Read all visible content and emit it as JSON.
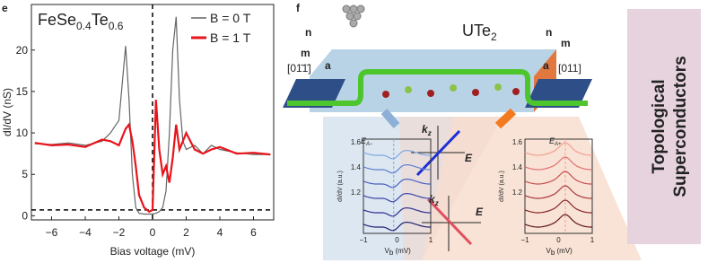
{
  "chart_data": {
    "type": "line",
    "label": "e",
    "title_parts": [
      "FeSe",
      "0.4",
      "Te",
      "0.6"
    ],
    "xlabel": "Bias voltage (mV)",
    "ylabel": "dI/dV (nS)",
    "x": [
      -7,
      -6,
      -5,
      -4,
      -3,
      -2.5,
      -2,
      -1.6,
      -1.4,
      -1.2,
      -1,
      -0.8,
      -0.5,
      -0.2,
      0,
      0.2,
      0.4,
      0.6,
      0.8,
      1,
      1.2,
      1.4,
      1.6,
      1.8,
      2,
      2.5,
      3,
      3.5,
      4,
      5,
      6,
      7
    ],
    "series": [
      {
        "name": "B = 0 T",
        "color": "#666666",
        "values": [
          8.7,
          8.6,
          8.8,
          8.5,
          9.0,
          10,
          11.5,
          20.5,
          14,
          5,
          1,
          0.3,
          0.2,
          0.2,
          0.2,
          0.3,
          0.5,
          1,
          3,
          10,
          20,
          24,
          14,
          9,
          8,
          8.5,
          7.5,
          8.5,
          8,
          7.6,
          7.4,
          7.4
        ]
      },
      {
        "name": "B = 1 T",
        "color": "#e8141b",
        "values": [
          8.8,
          8.5,
          8.6,
          8.3,
          9.2,
          9.0,
          8.5,
          10.5,
          11,
          9,
          6,
          2.5,
          1,
          0.5,
          0.7,
          14,
          8,
          5,
          6,
          4,
          7,
          11,
          8,
          9,
          10,
          8,
          7.5,
          8,
          8.3,
          7.5,
          7.6,
          7.4
        ]
      }
    ],
    "xlim": [
      -7.2,
      7.2
    ],
    "ylim": [
      -0.5,
      25.5
    ],
    "xticks": [
      {
        "value": -6,
        "label": "−6"
      },
      {
        "value": -4,
        "label": "−4"
      },
      {
        "value": -2,
        "label": "−2"
      },
      0,
      2,
      4,
      6
    ],
    "yticks": [
      0,
      5,
      10,
      15,
      20
    ],
    "hlines": [
      0.7
    ],
    "vlines": [
      0
    ]
  },
  "diagram": {
    "label": "f",
    "title_parts": [
      "UTe",
      "2"
    ],
    "axes_left": [
      "n",
      "m",
      "a"
    ],
    "dir_left": "[01̄1̄]",
    "axes_right": [
      "n",
      "m",
      "a"
    ],
    "dir_right": "[011]",
    "energy_left": [
      "E",
      "A−"
    ],
    "energy_right": [
      "E",
      "A+"
    ],
    "dispersion_top": [
      "k",
      "z",
      "E"
    ],
    "dispersion_bottom": [
      "k",
      "z",
      "E"
    ],
    "inset_left": {
      "yticks": [
        "1.6",
        "1.4",
        "1.2"
      ],
      "xticks": [
        "−1",
        "0",
        "1"
      ],
      "ylabel": "dI/dV (a.u.)",
      "xlabel": [
        "V",
        "b",
        " (mV)"
      ]
    },
    "inset_right": {
      "yticks": [
        "1.6",
        "1.4",
        "1.2"
      ],
      "xticks": [
        "−1",
        "0",
        "1"
      ],
      "ylabel": "dI/dV (a.u.)",
      "xlabel": [
        "V",
        "b",
        " (mV)"
      ]
    }
  },
  "sidebar": [
    "Topological",
    "Superconductors"
  ]
}
